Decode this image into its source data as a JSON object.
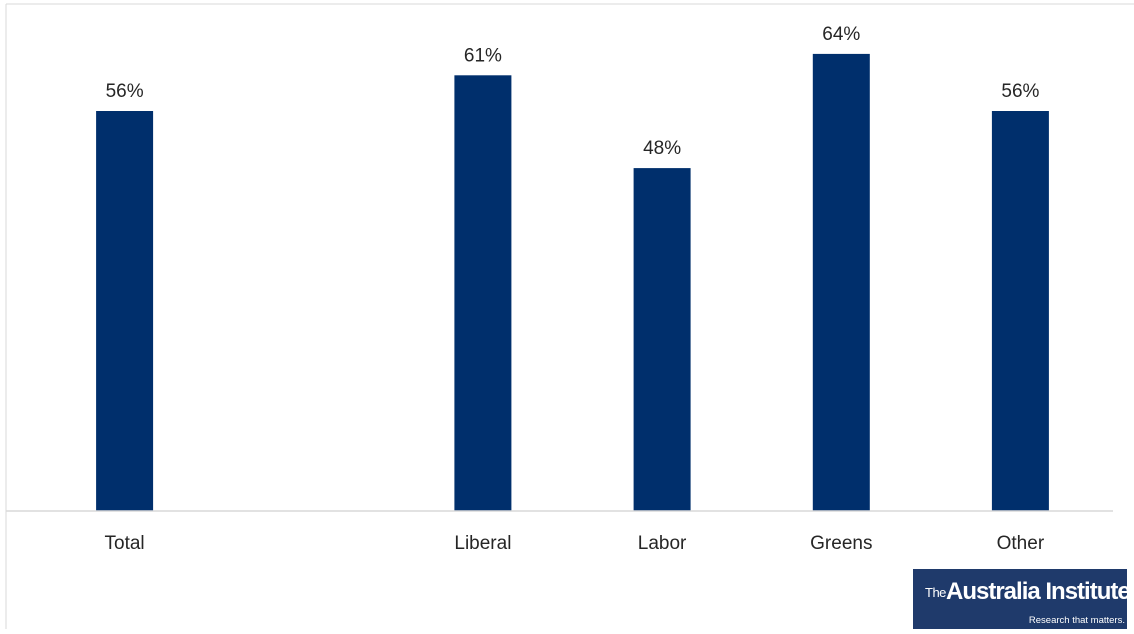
{
  "chart_data": {
    "type": "bar",
    "categories": [
      "Total",
      "",
      "Liberal",
      "Labor",
      "Greens",
      "Other"
    ],
    "values": [
      56,
      null,
      61,
      48,
      64,
      56
    ],
    "data_labels": [
      "56%",
      "",
      "61%",
      "48%",
      "64%",
      "56%"
    ],
    "title": "",
    "xlabel": "",
    "ylabel": "",
    "ylim": [
      0,
      70
    ],
    "grid": false,
    "bar_color": "#002f6c"
  },
  "logo": {
    "prefix": "The",
    "name": "Australia Institute",
    "tagline": "Research that matters."
  }
}
